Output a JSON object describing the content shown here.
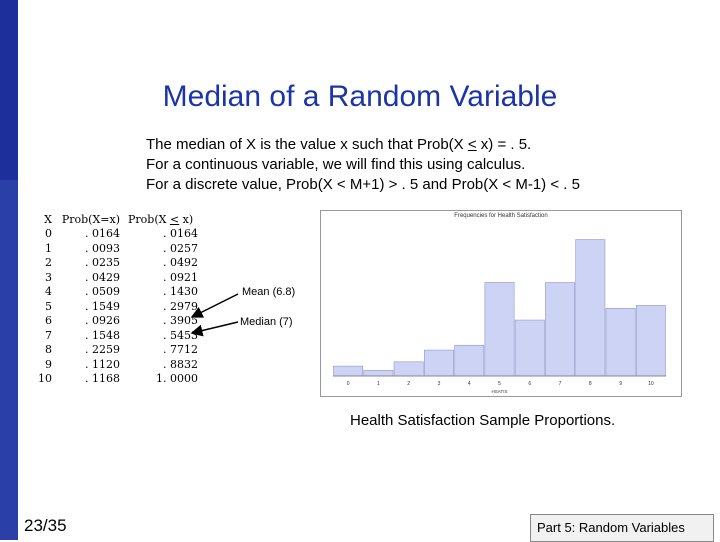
{
  "slide": {
    "title": "Median of a Random Variable",
    "lines": [
      {
        "before": "The median of X is the value x such that Prob(X ",
        "underlined": "<",
        "after": " x) = . 5."
      },
      {
        "before": "For a continuous variable, we will find this using calculus.",
        "underlined": "",
        "after": ""
      },
      {
        "before": "For a discrete value, Prob(X < M+1) > . 5 and Prob(X < M-1) < . 5",
        "underlined": "",
        "after": ""
      }
    ],
    "table": {
      "header": {
        "x": "X",
        "p": "Prob(X=x)",
        "c_before": "Prob(X ",
        "c_underlined": "<",
        "c_after": " x)"
      },
      "rows": [
        {
          "x": "0",
          "p": ". 0164",
          "c": ". 0164"
        },
        {
          "x": "1",
          "p": ". 0093",
          "c": ". 0257"
        },
        {
          "x": "2",
          "p": ". 0235",
          "c": ". 0492"
        },
        {
          "x": "3",
          "p": ". 0429",
          "c": ". 0921"
        },
        {
          "x": "4",
          "p": ". 0509",
          "c": ". 1430"
        },
        {
          "x": "5",
          "p": ". 1549",
          "c": ". 2979"
        },
        {
          "x": "6",
          "p": ". 0926",
          "c": ". 3905"
        },
        {
          "x": "7",
          "p": ". 1548",
          "c": ". 5453"
        },
        {
          "x": "8",
          "p": ". 2259",
          "c": ". 7712"
        },
        {
          "x": "9",
          "p": ". 1120",
          "c": ". 8832"
        },
        {
          "x": "10",
          "p": ". 1168",
          "c": "1. 0000"
        }
      ]
    },
    "annotations": {
      "mean": "Mean (6.8)",
      "median": "Median (7)"
    },
    "histogram": {
      "title": "Frequencies for Health Satisfaction",
      "xlabel": "HSATIS",
      "categories": [
        "0",
        "1",
        "2",
        "3",
        "4",
        "5",
        "6",
        "7",
        "8",
        "9",
        "10"
      ],
      "values": [
        0.0164,
        0.0093,
        0.0235,
        0.0429,
        0.0509,
        0.1549,
        0.0926,
        0.1548,
        0.2259,
        0.112,
        0.1168
      ],
      "bar_color": "#cdd3f5"
    },
    "caption": "Health Satisfaction Sample Proportions.",
    "slide_number": "23/35",
    "footer": "Part 5: Random Variables"
  }
}
